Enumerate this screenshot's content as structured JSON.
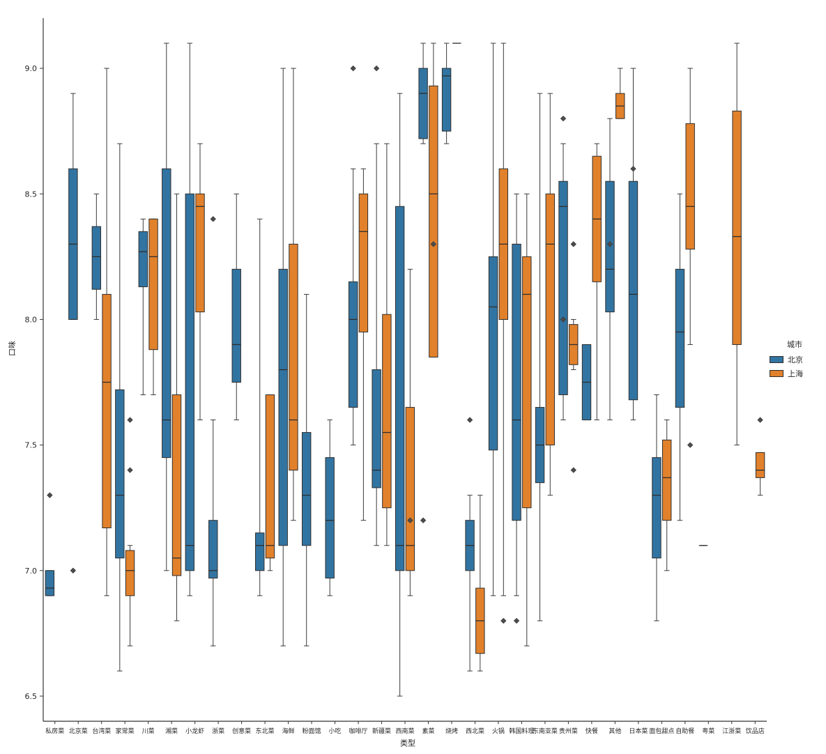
{
  "chart_data": {
    "type": "boxplot",
    "title": "",
    "xlabel": "类型",
    "ylabel": "口味",
    "ylim": [
      6.4,
      9.2
    ],
    "yticks": [
      6.5,
      7.0,
      7.5,
      8.0,
      8.5,
      9.0
    ],
    "grid": false,
    "legend": {
      "title": "城市",
      "position": "right"
    },
    "categories": [
      "私房菜",
      "北京菜",
      "台湾菜",
      "家常菜",
      "川菜",
      "湘菜",
      "小龙虾",
      "浙菜",
      "创意菜",
      "东北菜",
      "海鲜",
      "粉面馆",
      "小吃",
      "咖啡厅",
      "新疆菜",
      "西南菜",
      "素菜",
      "烧烤",
      "西北菜",
      "火锅",
      "韩国料理",
      "东南亚菜",
      "贵州菜",
      "快餐",
      "其他",
      "日本菜",
      "面包甜点",
      "自助餐",
      "粤菜",
      "江浙菜",
      "饮品店"
    ],
    "series": [
      {
        "name": "北京",
        "color": "#3274A1",
        "boxes": [
          {
            "lo": 6.9,
            "q1": 6.9,
            "med": 6.93,
            "q3": 7.0,
            "hi": 7.0,
            "out": [
              7.3
            ]
          },
          {
            "lo": 8.0,
            "q1": 8.0,
            "med": 8.3,
            "q3": 8.6,
            "hi": 8.9,
            "out": [
              7.0
            ]
          },
          {
            "lo": 8.0,
            "q1": 8.12,
            "med": 8.25,
            "q3": 8.37,
            "hi": 8.5,
            "out": []
          },
          {
            "lo": 6.6,
            "q1": 7.05,
            "med": 7.3,
            "q3": 7.72,
            "hi": 8.7,
            "out": []
          },
          {
            "lo": 7.7,
            "q1": 8.13,
            "med": 8.27,
            "q3": 8.35,
            "hi": 8.4,
            "out": []
          },
          {
            "lo": 7.0,
            "q1": 7.45,
            "med": 7.6,
            "q3": 8.6,
            "hi": 9.1,
            "out": []
          },
          {
            "lo": 6.9,
            "q1": 7.0,
            "med": 7.1,
            "q3": 8.5,
            "hi": 9.1,
            "out": []
          },
          {
            "lo": 6.7,
            "q1": 6.97,
            "med": 7.0,
            "q3": 7.2,
            "hi": 7.6,
            "out": [
              8.4
            ]
          },
          {
            "lo": 7.6,
            "q1": 7.75,
            "med": 7.9,
            "q3": 8.2,
            "hi": 8.5,
            "out": []
          },
          {
            "lo": 6.9,
            "q1": 7.0,
            "med": 7.1,
            "q3": 7.15,
            "hi": 8.4,
            "out": []
          },
          {
            "lo": 6.7,
            "q1": 7.1,
            "med": 7.8,
            "q3": 8.2,
            "hi": 9.0,
            "out": []
          },
          {
            "lo": 6.7,
            "q1": 7.1,
            "med": 7.3,
            "q3": 7.55,
            "hi": 8.1,
            "out": []
          },
          {
            "lo": 6.9,
            "q1": 6.97,
            "med": 7.2,
            "q3": 7.45,
            "hi": 7.6,
            "out": []
          },
          {
            "lo": 7.5,
            "q1": 7.65,
            "med": 8.0,
            "q3": 8.15,
            "hi": 8.6,
            "out": [
              9.0
            ]
          },
          {
            "lo": 7.1,
            "q1": 7.33,
            "med": 7.4,
            "q3": 7.8,
            "hi": 8.7,
            "out": [
              9.0
            ]
          },
          {
            "lo": 6.5,
            "q1": 7.0,
            "med": 7.1,
            "q3": 8.45,
            "hi": 8.9,
            "out": []
          },
          {
            "lo": 8.7,
            "q1": 8.72,
            "med": 8.9,
            "q3": 9.0,
            "hi": 9.1,
            "out": [
              7.2
            ]
          },
          {
            "lo": 8.7,
            "q1": 8.75,
            "med": 8.97,
            "q3": 9.0,
            "hi": 9.1,
            "out": []
          },
          {
            "lo": 6.6,
            "q1": 7.0,
            "med": 7.1,
            "q3": 7.2,
            "hi": 7.3,
            "out": [
              7.6
            ]
          },
          {
            "lo": 6.9,
            "q1": 7.48,
            "med": 8.05,
            "q3": 8.25,
            "hi": 9.1,
            "out": []
          },
          {
            "lo": 6.9,
            "q1": 7.2,
            "med": 7.6,
            "q3": 8.3,
            "hi": 8.5,
            "out": [
              6.8
            ]
          },
          {
            "lo": 6.8,
            "q1": 7.35,
            "med": 7.5,
            "q3": 7.65,
            "hi": 8.9,
            "out": []
          },
          {
            "lo": 7.6,
            "q1": 7.7,
            "med": 8.45,
            "q3": 8.55,
            "hi": 8.7,
            "out": [
              8.8,
              8.0
            ]
          },
          {
            "lo": 7.6,
            "q1": 7.6,
            "med": 7.75,
            "q3": 7.9,
            "hi": 7.9,
            "out": []
          },
          {
            "lo": 7.6,
            "q1": 8.03,
            "med": 8.2,
            "q3": 8.55,
            "hi": 8.8,
            "out": [
              8.3
            ]
          },
          {
            "lo": 7.6,
            "q1": 7.68,
            "med": 8.1,
            "q3": 8.55,
            "hi": 9.0,
            "out": [
              8.6
            ]
          },
          {
            "lo": 6.8,
            "q1": 7.05,
            "med": 7.3,
            "q3": 7.45,
            "hi": 7.7,
            "out": []
          },
          {
            "lo": 7.2,
            "q1": 7.65,
            "med": 7.95,
            "q3": 8.2,
            "hi": 8.5,
            "out": []
          },
          {
            "lo": 7.1,
            "q1": 7.1,
            "med": 7.1,
            "q3": 7.1,
            "hi": 7.1,
            "out": []
          },
          null,
          null
        ]
      },
      {
        "name": "上海",
        "color": "#E1812C",
        "boxes": [
          null,
          null,
          {
            "lo": 6.9,
            "q1": 7.17,
            "med": 7.75,
            "q3": 8.1,
            "hi": 9.0,
            "out": []
          },
          {
            "lo": 6.7,
            "q1": 6.9,
            "med": 7.0,
            "q3": 7.08,
            "hi": 7.1,
            "out": [
              7.6,
              7.4
            ]
          },
          {
            "lo": 7.7,
            "q1": 7.88,
            "med": 8.25,
            "q3": 8.4,
            "hi": 8.4,
            "out": []
          },
          {
            "lo": 6.8,
            "q1": 6.98,
            "med": 7.05,
            "q3": 7.7,
            "hi": 8.5,
            "out": []
          },
          {
            "lo": 7.6,
            "q1": 8.03,
            "med": 8.45,
            "q3": 8.5,
            "hi": 8.7,
            "out": []
          },
          null,
          null,
          {
            "lo": 7.0,
            "q1": 7.05,
            "med": 7.1,
            "q3": 7.7,
            "hi": 7.7,
            "out": []
          },
          {
            "lo": 7.2,
            "q1": 7.4,
            "med": 7.6,
            "q3": 8.3,
            "hi": 9.0,
            "out": []
          },
          null,
          null,
          {
            "lo": 7.2,
            "q1": 7.95,
            "med": 8.35,
            "q3": 8.5,
            "hi": 8.6,
            "out": []
          },
          {
            "lo": 7.1,
            "q1": 7.25,
            "med": 7.55,
            "q3": 8.02,
            "hi": 8.7,
            "out": []
          },
          {
            "lo": 6.9,
            "q1": 7.0,
            "med": 7.1,
            "q3": 7.65,
            "hi": 8.2,
            "out": [
              7.2
            ]
          },
          {
            "lo": 7.85,
            "q1": 7.85,
            "med": 8.5,
            "q3": 8.93,
            "hi": 9.1,
            "out": [
              8.3
            ]
          },
          {
            "lo": 9.1,
            "q1": 9.1,
            "med": 9.1,
            "q3": 9.1,
            "hi": 9.1,
            "out": []
          },
          {
            "lo": 6.6,
            "q1": 6.67,
            "med": 6.8,
            "q3": 6.93,
            "hi": 7.3,
            "out": []
          },
          {
            "lo": 6.9,
            "q1": 8.0,
            "med": 8.3,
            "q3": 8.6,
            "hi": 9.1,
            "out": [
              6.8
            ]
          },
          {
            "lo": 6.7,
            "q1": 7.25,
            "med": 8.1,
            "q3": 8.25,
            "hi": 8.5,
            "out": []
          },
          {
            "lo": 7.3,
            "q1": 7.5,
            "med": 8.3,
            "q3": 8.5,
            "hi": 8.9,
            "out": []
          },
          {
            "lo": 7.8,
            "q1": 7.82,
            "med": 7.9,
            "q3": 7.98,
            "hi": 8.0,
            "out": [
              8.3,
              7.4
            ]
          },
          {
            "lo": 7.6,
            "q1": 8.15,
            "med": 8.4,
            "q3": 8.65,
            "hi": 8.7,
            "out": []
          },
          {
            "lo": 8.8,
            "q1": 8.8,
            "med": 8.85,
            "q3": 8.9,
            "hi": 9.0,
            "out": []
          },
          null,
          {
            "lo": 7.0,
            "q1": 7.2,
            "med": 7.37,
            "q3": 7.52,
            "hi": 7.6,
            "out": []
          },
          {
            "lo": 7.9,
            "q1": 8.28,
            "med": 8.45,
            "q3": 8.78,
            "hi": 9.0,
            "out": [
              7.5
            ]
          },
          null,
          {
            "lo": 7.5,
            "q1": 7.9,
            "med": 8.33,
            "q3": 8.83,
            "hi": 9.1,
            "out": []
          },
          {
            "lo": 7.3,
            "q1": 7.37,
            "med": 7.4,
            "q3": 7.47,
            "hi": 7.47,
            "out": [
              7.6
            ]
          }
        ]
      }
    ]
  }
}
